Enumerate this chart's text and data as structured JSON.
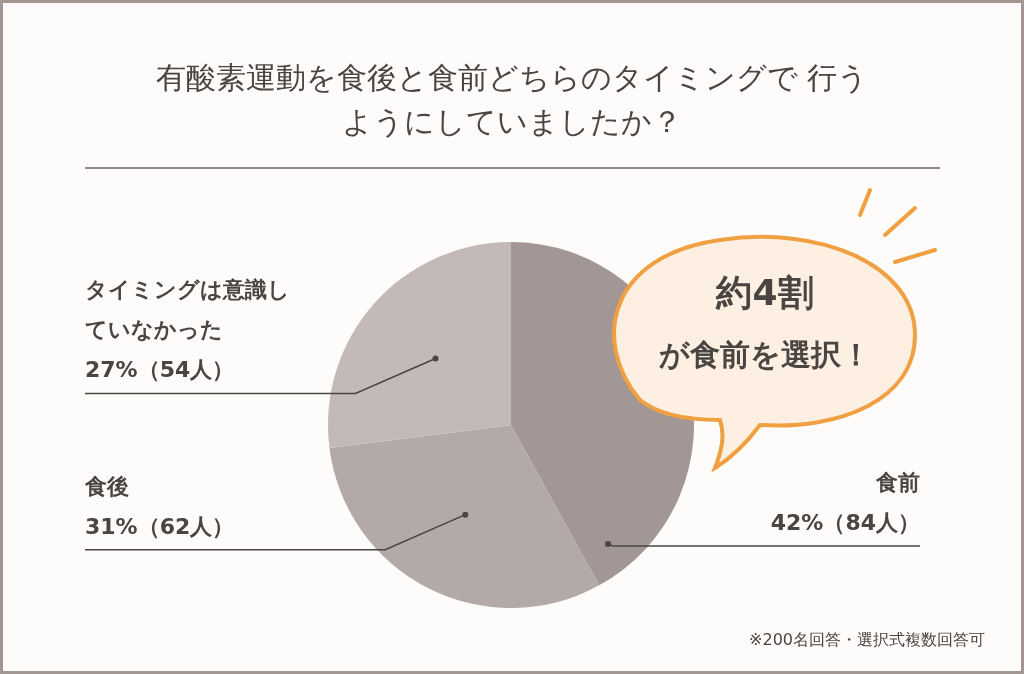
{
  "chart_data": {
    "type": "pie",
    "title": "有酸素運動を食後と食前どちらのタイミングで 行うようにしていましたか？",
    "categories": [
      "食前",
      "食後",
      "タイミングは意識していなかった"
    ],
    "values": [
      42,
      31,
      27
    ],
    "value_labels": [
      "42%（84人）",
      "31%（62人）",
      "27%（54人）"
    ],
    "colors": [
      "#a39796",
      "#b3a9a8",
      "#c2b9b8"
    ],
    "annotations": [
      "約4割が食前を選択！",
      "※200名回答・選択式複数回答可"
    ]
  }
}
